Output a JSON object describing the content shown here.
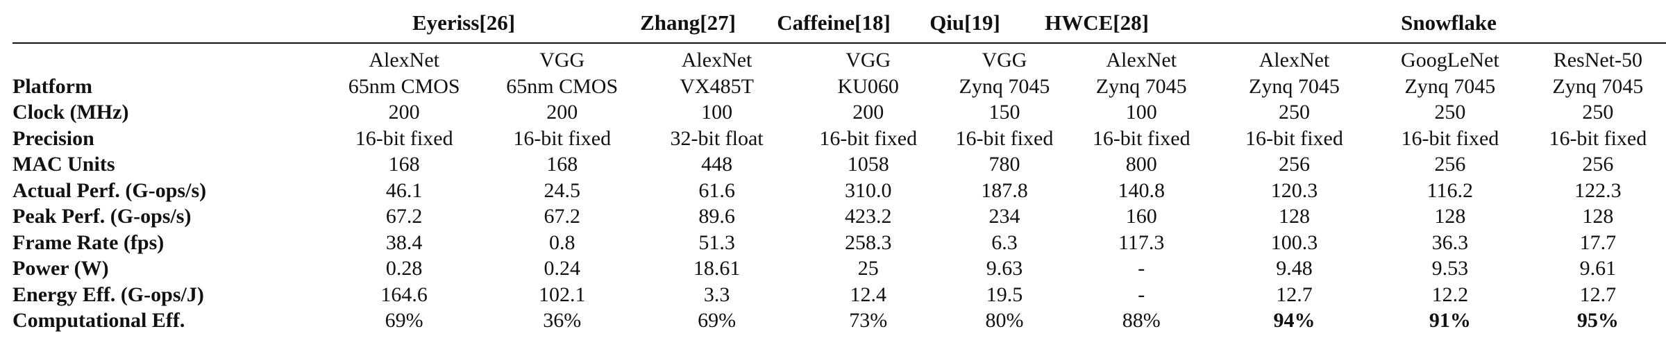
{
  "groups": [
    {
      "label": "Eyeriss[26]"
    },
    {
      "label": "Zhang[27]"
    },
    {
      "label": "Caffeine[18]"
    },
    {
      "label": "Qiu[19]"
    },
    {
      "label": "HWCE[28]"
    },
    {
      "label": "Snowflake"
    }
  ],
  "columns": [
    {
      "network": "AlexNet"
    },
    {
      "network": "VGG"
    },
    {
      "network": "AlexNet"
    },
    {
      "network": "VGG"
    },
    {
      "network": "VGG"
    },
    {
      "network": "AlexNet"
    },
    {
      "network": "AlexNet"
    },
    {
      "network": "GoogLeNet"
    },
    {
      "network": "ResNet-50"
    }
  ],
  "rows": [
    {
      "label": "Platform",
      "cells": [
        "65nm CMOS",
        "65nm CMOS",
        "VX485T",
        "KU060",
        "Zynq 7045",
        "Zynq 7045",
        "Zynq 7045",
        "Zynq 7045",
        "Zynq 7045"
      ]
    },
    {
      "label": "Clock (MHz)",
      "cells": [
        "200",
        "200",
        "100",
        "200",
        "150",
        "100",
        "250",
        "250",
        "250"
      ]
    },
    {
      "label": "Precision",
      "cells": [
        "16-bit fixed",
        "16-bit fixed",
        "32-bit float",
        "16-bit fixed",
        "16-bit fixed",
        "16-bit fixed",
        "16-bit fixed",
        "16-bit fixed",
        "16-bit fixed"
      ]
    },
    {
      "label": "MAC Units",
      "cells": [
        "168",
        "168",
        "448",
        "1058",
        "780",
        "800",
        "256",
        "256",
        "256"
      ]
    },
    {
      "label": "Actual Perf. (G-ops/s)",
      "cells": [
        "46.1",
        "24.5",
        "61.6",
        "310.0",
        "187.8",
        "140.8",
        "120.3",
        "116.2",
        "122.3"
      ]
    },
    {
      "label": "Peak Perf. (G-ops/s)",
      "cells": [
        "67.2",
        "67.2",
        "89.6",
        "423.2",
        "234",
        "160",
        "128",
        "128",
        "128"
      ]
    },
    {
      "label": "Frame Rate (fps)",
      "cells": [
        "38.4",
        "0.8",
        "51.3",
        "258.3",
        "6.3",
        "117.3",
        "100.3",
        "36.3",
        "17.7"
      ]
    },
    {
      "label": "Power (W)",
      "cells": [
        "0.28",
        "0.24",
        "18.61",
        "25",
        "9.63",
        "-",
        "9.48",
        "9.53",
        "9.61"
      ]
    },
    {
      "label": "Energy Eff. (G-ops/J)",
      "cells": [
        "164.6",
        "102.1",
        "3.3",
        "12.4",
        "19.5",
        "-",
        "12.7",
        "12.2",
        "12.7"
      ]
    },
    {
      "label": "Computational Eff.",
      "cells": [
        "69%",
        "36%",
        "69%",
        "73%",
        "80%",
        "88%",
        "94%",
        "91%",
        "95%"
      ]
    }
  ]
}
